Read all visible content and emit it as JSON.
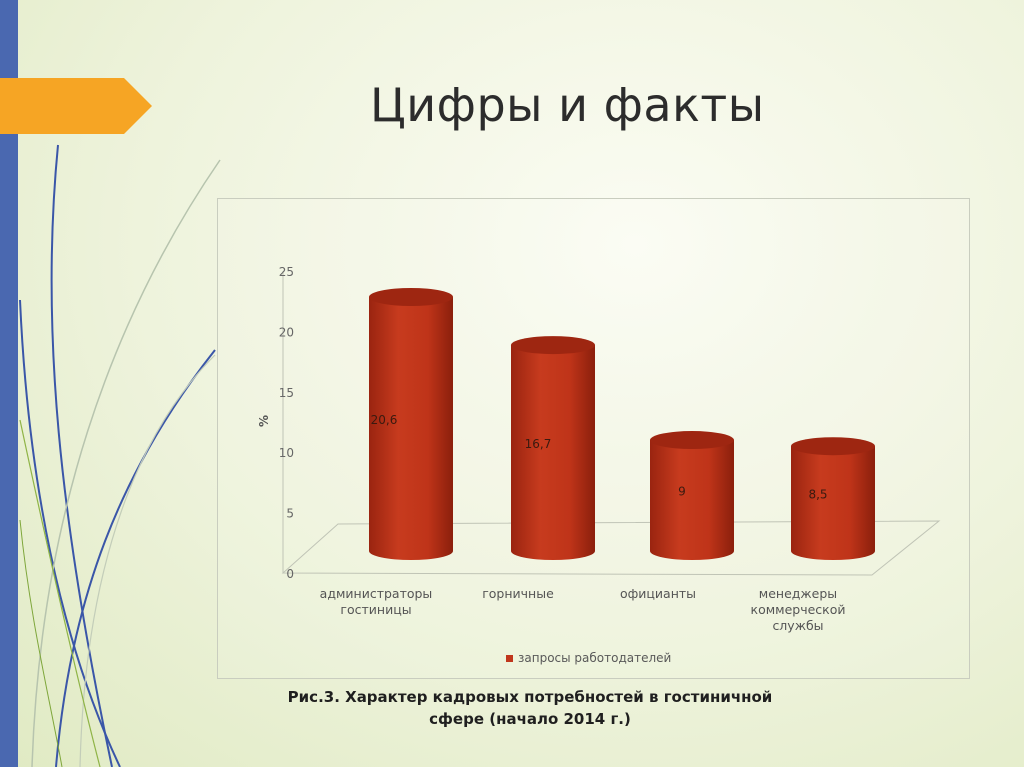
{
  "slide": {
    "title": "Цифры  и факты",
    "caption_line1": "Рис.3. Характер кадровых потребностей в гостиничной",
    "caption_line2": "сфере (начало 2014 г.)"
  },
  "chart_data": {
    "type": "bar",
    "style": "3d-cylinder",
    "ylabel": "%",
    "ylim": [
      0,
      25
    ],
    "yticks": [
      0,
      5,
      10,
      15,
      20,
      25
    ],
    "categories": [
      [
        "администраторы",
        "гостиницы"
      ],
      [
        "горничные"
      ],
      [
        "официанты"
      ],
      [
        "менеджеры",
        "коммерческой",
        "службы"
      ]
    ],
    "series": [
      {
        "name": "запросы работодателей",
        "values": [
          20.6,
          16.7,
          9,
          8.5
        ],
        "labels": [
          "20,6",
          "16,7",
          "9",
          "8,5"
        ],
        "color": "#c0361c"
      }
    ],
    "legend_position": "bottom",
    "grid": false
  }
}
